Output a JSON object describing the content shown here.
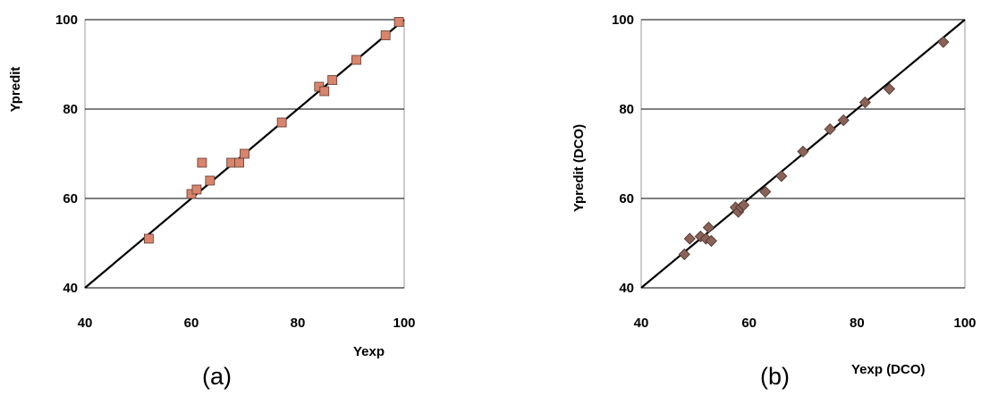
{
  "colors": {
    "chart_a_marker": "#d9846c",
    "chart_b_marker": "#8a6258",
    "gridline": "#000000",
    "line": "#000000"
  },
  "chart_data": [
    {
      "type": "scatter",
      "panel_label": "(a)",
      "xlabel": "Yexp",
      "ylabel": "Ypredit",
      "xlim": [
        40,
        100
      ],
      "ylim": [
        40,
        100
      ],
      "xticks": [
        "40",
        "60",
        "80",
        "100"
      ],
      "yticks": [
        "40",
        "60",
        "80",
        "100"
      ],
      "grid": "horizontal",
      "marker": "square",
      "reference_line": [
        [
          40,
          40
        ],
        [
          100,
          100
        ]
      ],
      "points": [
        [
          52,
          51
        ],
        [
          60,
          61
        ],
        [
          61,
          62
        ],
        [
          62,
          68
        ],
        [
          63.5,
          64
        ],
        [
          67.5,
          68
        ],
        [
          69,
          68
        ],
        [
          70,
          70
        ],
        [
          77,
          77
        ],
        [
          84,
          85
        ],
        [
          85,
          84
        ],
        [
          86.5,
          86.5
        ],
        [
          91,
          91
        ],
        [
          96.5,
          96.5
        ],
        [
          99,
          99.5
        ]
      ]
    },
    {
      "type": "scatter",
      "panel_label": "(b)",
      "xlabel": "Yexp (DCO)",
      "ylabel": "Ypredit (DCO)",
      "xlim": [
        40,
        100
      ],
      "ylim": [
        40,
        100
      ],
      "xticks": [
        "40",
        "60",
        "80",
        "100"
      ],
      "yticks": [
        "40",
        "60",
        "80",
        "100"
      ],
      "grid": "horizontal",
      "marker": "diamond",
      "reference_line": [
        [
          40,
          40
        ],
        [
          100,
          100
        ]
      ],
      "points": [
        [
          48,
          47.5
        ],
        [
          49,
          51
        ],
        [
          51,
          51.5
        ],
        [
          52,
          51
        ],
        [
          52.5,
          53.5
        ],
        [
          53,
          50.5
        ],
        [
          57.5,
          58
        ],
        [
          58,
          57
        ],
        [
          58.5,
          58
        ],
        [
          59,
          58.5
        ],
        [
          63,
          61.5
        ],
        [
          66,
          65
        ],
        [
          70,
          70.5
        ],
        [
          75,
          75.5
        ],
        [
          77.5,
          77.5
        ],
        [
          81.5,
          81.5
        ],
        [
          86,
          84.5
        ],
        [
          96,
          95
        ]
      ]
    }
  ]
}
